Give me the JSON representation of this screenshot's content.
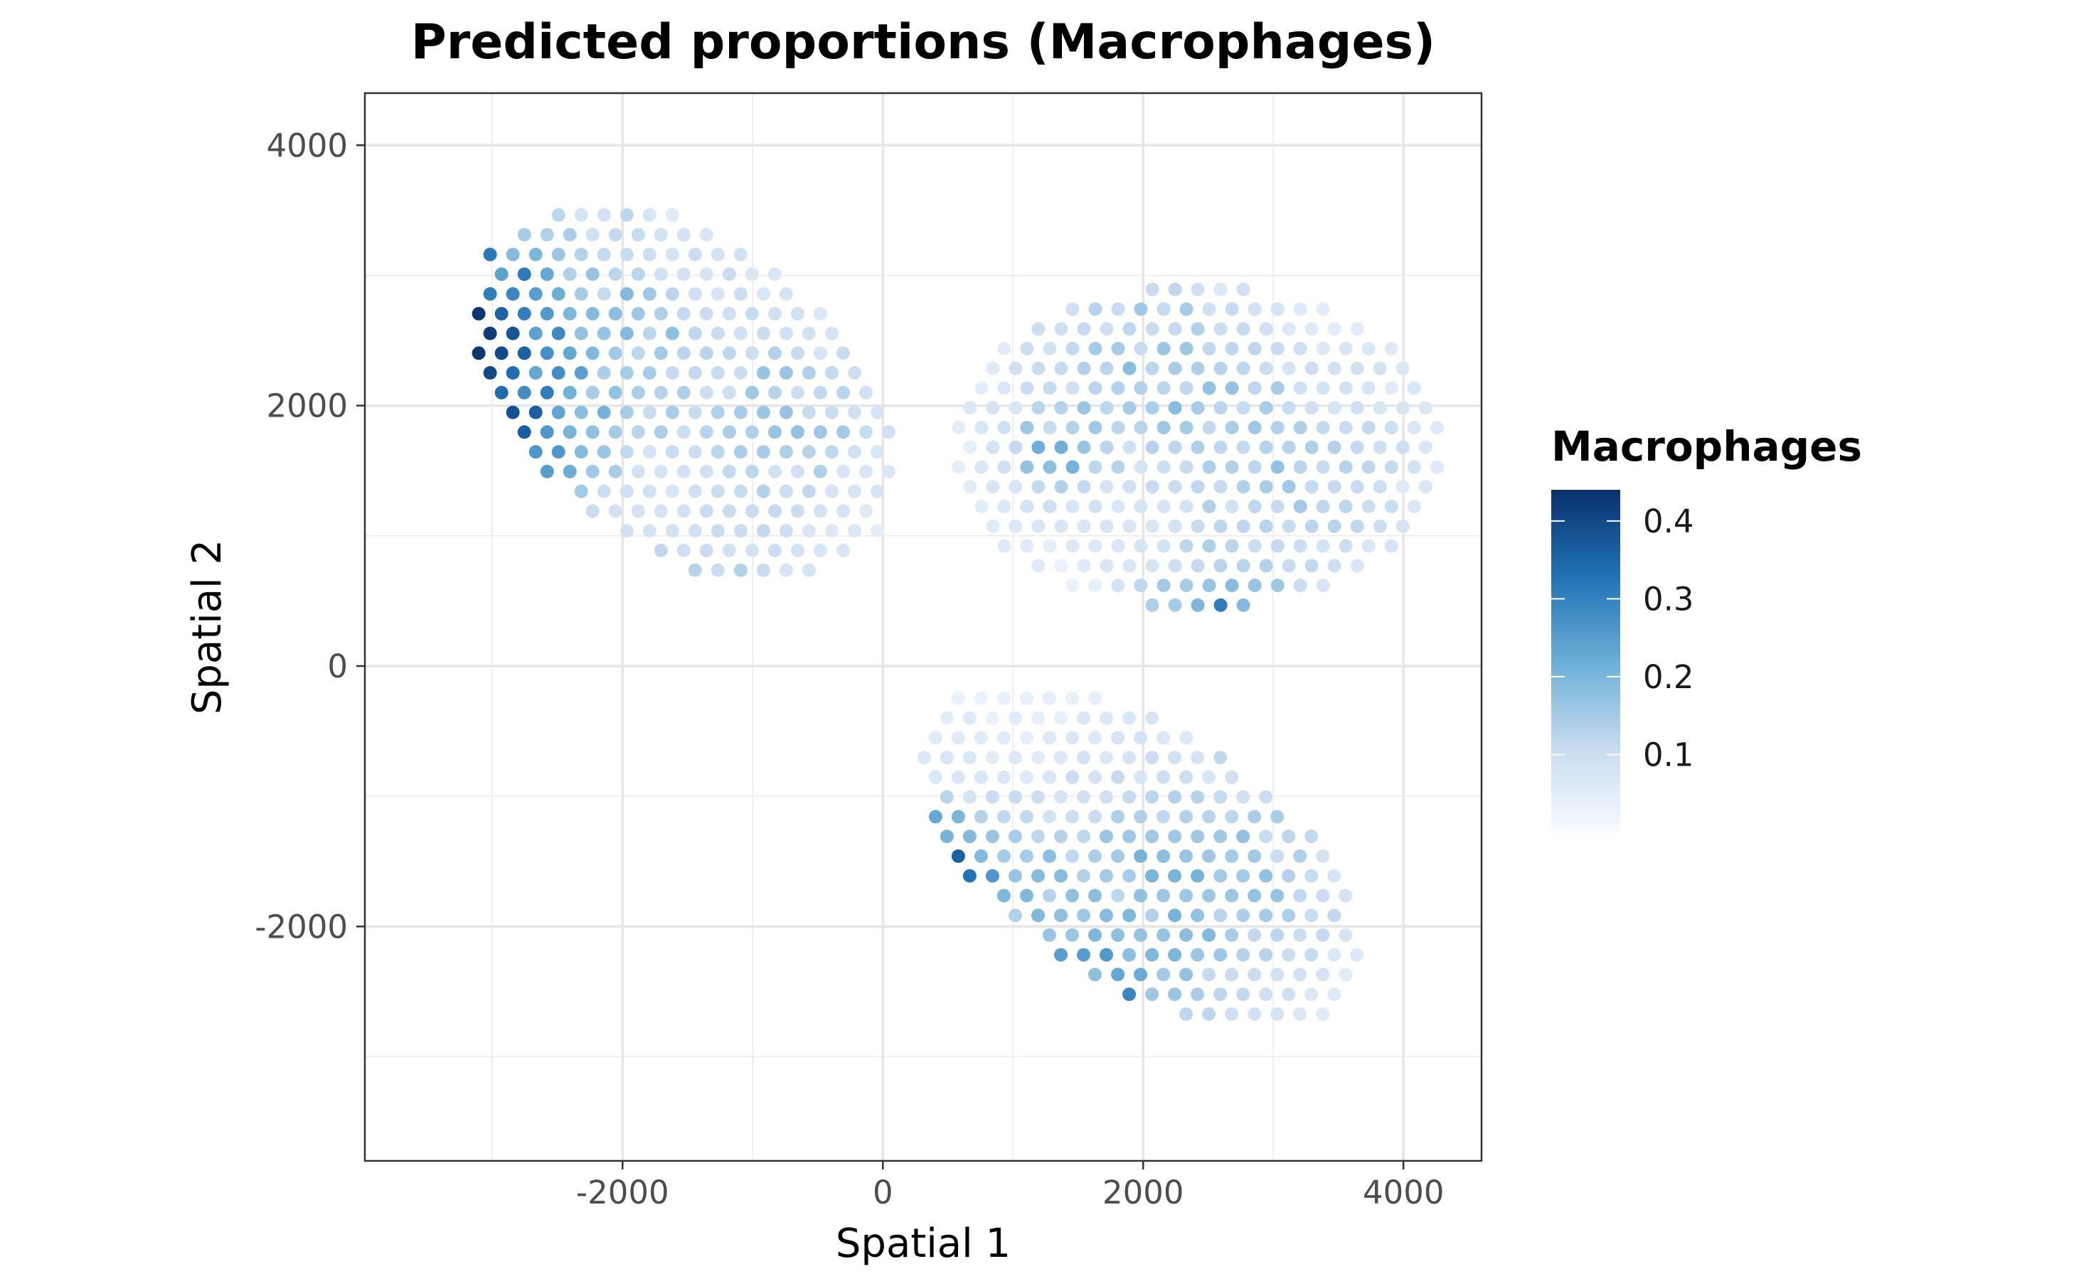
{
  "chart_data": {
    "type": "scatter",
    "title": "Predicted proportions (Macrophages)",
    "xlabel": "Spatial 1",
    "ylabel": "Spatial 2",
    "xlim": [
      -3980,
      4600
    ],
    "ylim": [
      -3800,
      4400
    ],
    "x_ticks": [
      -2000,
      0,
      2000,
      4000
    ],
    "y_ticks": [
      -2000,
      0,
      2000,
      4000
    ],
    "x_tick_labels": [
      "-2000",
      "0",
      "2000",
      "4000"
    ],
    "y_tick_labels": [
      "-2000",
      "0",
      "2000",
      "4000"
    ],
    "grid": true,
    "legend": {
      "title": "Macrophages",
      "placement": "right",
      "range": [
        0,
        0.44
      ],
      "ticks": [
        0.1,
        0.2,
        0.3,
        0.4
      ],
      "tick_labels": [
        "0.1",
        "0.2",
        "0.3",
        "0.4"
      ],
      "colors": [
        "#f7fbff",
        "#c6dbef",
        "#6baed6",
        "#2171b5",
        "#08306b"
      ]
    },
    "regions": [
      {
        "name": "section-1",
        "center": [
          -1530,
          2100
        ],
        "rx": 1830,
        "ry": 1180,
        "angle": -38,
        "hotspots": [
          {
            "x": -3200,
            "y": 2700,
            "v": 0.35,
            "s": 400
          },
          {
            "x": -2900,
            "y": 1700,
            "v": 0.22,
            "s": 450
          },
          {
            "x": -2200,
            "y": 2600,
            "v": 0.12,
            "s": 700
          },
          {
            "x": -700,
            "y": 1900,
            "v": 0.1,
            "s": 500
          },
          {
            "x": -1300,
            "y": 500,
            "v": 0.08,
            "s": 500
          }
        ]
      },
      {
        "name": "section-2",
        "center": [
          2420,
          1680
        ],
        "rx": 1870,
        "ry": 1260,
        "angle": 0,
        "hotspots": [
          {
            "x": 2500,
            "y": 300,
            "v": 0.22,
            "s": 350
          },
          {
            "x": 2100,
            "y": 2300,
            "v": 0.1,
            "s": 700
          },
          {
            "x": 3300,
            "y": 1400,
            "v": 0.08,
            "s": 600
          },
          {
            "x": 1300,
            "y": 1600,
            "v": 0.12,
            "s": 250
          }
        ]
      },
      {
        "name": "section-3",
        "center": [
          1980,
          -1460
        ],
        "rx": 1900,
        "ry": 1000,
        "angle": -33,
        "hotspots": [
          {
            "x": 400,
            "y": -1550,
            "v": 0.24,
            "s": 350
          },
          {
            "x": 1600,
            "y": -2750,
            "v": 0.2,
            "s": 450
          },
          {
            "x": 2600,
            "y": -1600,
            "v": 0.12,
            "s": 700
          },
          {
            "x": 1300,
            "y": -1800,
            "v": 0.08,
            "s": 600
          }
        ]
      }
    ],
    "spot_spacing": 175
  }
}
